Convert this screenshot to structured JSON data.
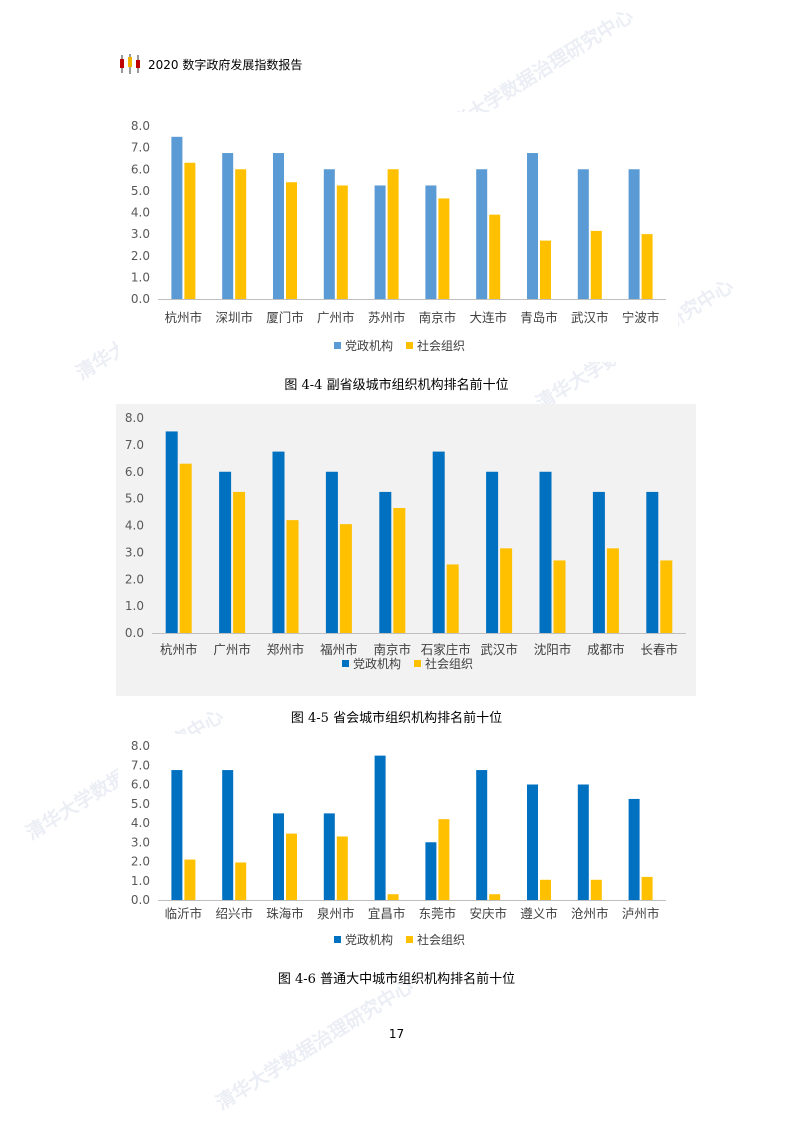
{
  "header": {
    "title": "2020 数字政府发展指数报告"
  },
  "page_number": "17",
  "watermark": "清华大学数据治理研究中心",
  "colors": {
    "chart1_gov": "#5b9bd5",
    "social": "#ffc000",
    "chart2_gov": "#0070c0",
    "chart3_gov": "#0070c0",
    "logo_red": "#c00000",
    "logo_gold": "#f0b400"
  },
  "legend": {
    "gov": "党政机构",
    "social": "社会组织"
  },
  "chart_data": [
    {
      "type": "bar",
      "caption": "图 4-4  副省级城市组织机构排名前十位",
      "categories": [
        "杭州市",
        "深圳市",
        "厦门市",
        "广州市",
        "苏州市",
        "南京市",
        "大连市",
        "青岛市",
        "武汉市",
        "宁波市"
      ],
      "series": [
        {
          "name": "党政机构",
          "values": [
            7.5,
            6.75,
            6.75,
            6.0,
            5.25,
            5.25,
            6.0,
            6.75,
            6.0,
            6.0
          ]
        },
        {
          "name": "社会组织",
          "values": [
            6.3,
            6.0,
            5.4,
            5.25,
            6.0,
            4.65,
            3.9,
            2.7,
            3.15,
            3.0
          ]
        }
      ],
      "ylim": [
        0,
        8
      ],
      "yticks": [
        "0.0",
        "1.0",
        "2.0",
        "3.0",
        "4.0",
        "5.0",
        "6.0",
        "7.0",
        "8.0"
      ],
      "grid": false,
      "legend_position": "bottom"
    },
    {
      "type": "bar",
      "caption": "图 4-5  省会城市组织机构排名前十位",
      "categories": [
        "杭州市",
        "广州市",
        "郑州市",
        "福州市",
        "南京市",
        "石家庄市",
        "武汉市",
        "沈阳市",
        "成都市",
        "长春市"
      ],
      "series": [
        {
          "name": "党政机构",
          "values": [
            7.5,
            6.0,
            6.75,
            6.0,
            5.25,
            6.75,
            6.0,
            6.0,
            5.25,
            5.25
          ]
        },
        {
          "name": "社会组织",
          "values": [
            6.3,
            5.25,
            4.2,
            4.05,
            4.65,
            2.55,
            3.15,
            2.7,
            3.15,
            2.7
          ]
        }
      ],
      "ylim": [
        0,
        8
      ],
      "yticks": [
        "0.0",
        "1.0",
        "2.0",
        "3.0",
        "4.0",
        "5.0",
        "6.0",
        "7.0",
        "8.0"
      ],
      "grid": false,
      "legend_position": "bottom"
    },
    {
      "type": "bar",
      "caption": "图 4-6  普通大中城市组织机构排名前十位",
      "categories": [
        "临沂市",
        "绍兴市",
        "珠海市",
        "泉州市",
        "宜昌市",
        "东莞市",
        "安庆市",
        "遵义市",
        "沧州市",
        "泸州市"
      ],
      "series": [
        {
          "name": "党政机构",
          "values": [
            6.75,
            6.75,
            4.5,
            4.5,
            7.5,
            3.0,
            6.75,
            6.0,
            6.0,
            5.25
          ]
        },
        {
          "name": "社会组织",
          "values": [
            2.1,
            1.95,
            3.45,
            3.3,
            0.3,
            4.2,
            0.3,
            1.05,
            1.05,
            1.2
          ]
        }
      ],
      "ylim": [
        0,
        8
      ],
      "yticks": [
        "0.0",
        "1.0",
        "2.0",
        "3.0",
        "4.0",
        "5.0",
        "6.0",
        "7.0",
        "8.0"
      ],
      "grid": false,
      "legend_position": "bottom"
    }
  ]
}
